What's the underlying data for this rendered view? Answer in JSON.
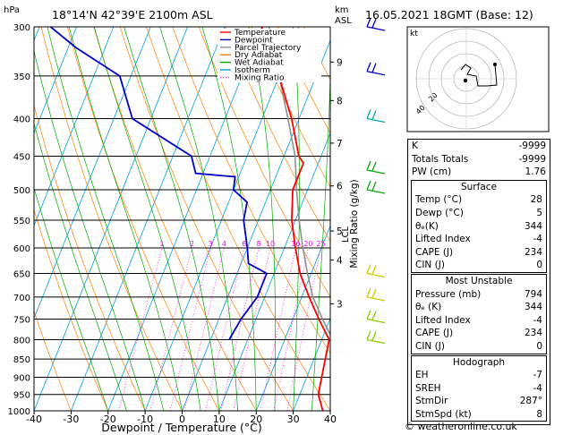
{
  "header": {
    "hpa": "hPa",
    "location": "18°14'N  42°39'E  2100m  ASL",
    "km": "km",
    "asl": "ASL",
    "date": "16.05.2021  18GMT  (Base: 12)"
  },
  "chart_data": {
    "type": "skew-t",
    "pressure_ticks": [
      300,
      350,
      400,
      450,
      500,
      550,
      600,
      650,
      700,
      750,
      800,
      850,
      900,
      950,
      1000
    ],
    "temperature_ticks": [
      -40,
      -30,
      -20,
      -10,
      0,
      10,
      20,
      30,
      40
    ],
    "xlim": [
      -40,
      40
    ],
    "ylim": [
      1000,
      300
    ],
    "xlabel": "Dewpoint / Temperature (°C)",
    "ylabel": "",
    "km_ticks": [
      {
        "label": "9",
        "p": 335
      },
      {
        "label": "8",
        "p": 378
      },
      {
        "label": "7",
        "p": 432
      },
      {
        "label": "6",
        "p": 494
      },
      {
        "label": "5",
        "p": 569
      },
      {
        "label": "4",
        "p": 623
      },
      {
        "label": "3",
        "p": 715
      }
    ],
    "lcl_label": "LCL",
    "lcl_pressure": 570,
    "mixing_ratio_label": "Mixing Ratio (g/kg)",
    "mixing_ratios": [
      {
        "label": "1",
        "value": 1
      },
      {
        "label": "2",
        "value": 2
      },
      {
        "label": "3",
        "value": 3
      },
      {
        "label": "4",
        "value": 4
      },
      {
        "label": "6",
        "value": 6
      },
      {
        "label": "8",
        "value": 8
      },
      {
        "label": "10",
        "value": 10
      },
      {
        "label": "16",
        "value": 16
      },
      {
        "label": "20",
        "value": 20
      },
      {
        "label": "25",
        "value": 25
      }
    ],
    "legend": [
      {
        "label": "Temperature",
        "color": "#ff0000"
      },
      {
        "label": "Dewpoint",
        "color": "#0000cc"
      },
      {
        "label": "Parcel Trajectory",
        "color": "#909090"
      },
      {
        "label": "Dry Adiabat",
        "color": "#ff8000"
      },
      {
        "label": "Wet Adiabat",
        "color": "#00aa00"
      },
      {
        "label": "Isotherm",
        "color": "#00a0e0"
      },
      {
        "label": "Mixing Ratio",
        "color": "#ff00ff"
      }
    ],
    "temperature": [
      [
        1000,
        38
      ],
      [
        950,
        35
      ],
      [
        800,
        32
      ],
      [
        750,
        27
      ],
      [
        700,
        22
      ],
      [
        650,
        17
      ],
      [
        600,
        13
      ],
      [
        550,
        9
      ],
      [
        500,
        6
      ],
      [
        470,
        6
      ],
      [
        460,
        6
      ],
      [
        450,
        4
      ],
      [
        400,
        -2
      ],
      [
        350,
        -10
      ],
      [
        300,
        -20
      ]
    ],
    "dewpoint": [
      [
        800,
        5
      ],
      [
        750,
        6
      ],
      [
        700,
        8
      ],
      [
        650,
        8
      ],
      [
        630,
        2
      ],
      [
        600,
        0
      ],
      [
        550,
        -4
      ],
      [
        520,
        -5
      ],
      [
        500,
        -10
      ],
      [
        480,
        -11
      ],
      [
        475,
        -22
      ],
      [
        450,
        -25
      ],
      [
        400,
        -45
      ],
      [
        350,
        -53
      ],
      [
        320,
        -68
      ],
      [
        300,
        -77
      ]
    ],
    "parcel": [
      [
        800,
        33
      ],
      [
        750,
        28
      ],
      [
        700,
        23
      ],
      [
        650,
        19
      ],
      [
        600,
        15
      ],
      [
        550,
        11
      ],
      [
        500,
        7
      ],
      [
        450,
        3
      ],
      [
        400,
        -3
      ],
      [
        350,
        -10
      ],
      [
        300,
        -18
      ]
    ]
  },
  "hodograph": {
    "label": "kt",
    "ring_labels": [
      "20",
      "40"
    ]
  },
  "indices": [
    {
      "label": "K",
      "value": "-9999"
    },
    {
      "label": "Totals Totals",
      "value": "-9999"
    },
    {
      "label": "PW (cm)",
      "value": "1.76"
    }
  ],
  "surface": {
    "title": "Surface",
    "rows": [
      {
        "label": "Temp (°C)",
        "value": "28"
      },
      {
        "label": "Dewp (°C)",
        "value": "5"
      },
      {
        "label": "θₑ(K)",
        "value": "344"
      },
      {
        "label": "Lifted Index",
        "value": "-4"
      },
      {
        "label": "CAPE (J)",
        "value": "234"
      },
      {
        "label": "CIN (J)",
        "value": "0"
      }
    ]
  },
  "most_unstable": {
    "title": "Most Unstable",
    "rows": [
      {
        "label": "Pressure (mb)",
        "value": "794"
      },
      {
        "label": "θₑ (K)",
        "value": "344"
      },
      {
        "label": "Lifted Index",
        "value": "-4"
      },
      {
        "label": "CAPE (J)",
        "value": "234"
      },
      {
        "label": "CIN (J)",
        "value": "0"
      }
    ]
  },
  "hodograph_table": {
    "title": "Hodograph",
    "rows": [
      {
        "label": "EH",
        "value": "-7"
      },
      {
        "label": "SREH",
        "value": "-4"
      },
      {
        "label": "StmDir",
        "value": "287°"
      },
      {
        "label": "StmSpd (kt)",
        "value": "8"
      }
    ]
  },
  "credit": "© weatheronline.co.uk",
  "colors": {
    "temperature": "#ff0000",
    "dewpoint": "#0000cc",
    "parcel": "#909090",
    "dry_adiabat": "#ff8000",
    "wet_adiabat": "#00aa00",
    "isotherm": "#00a0e0",
    "mixing_ratio": "#ff00ff"
  }
}
